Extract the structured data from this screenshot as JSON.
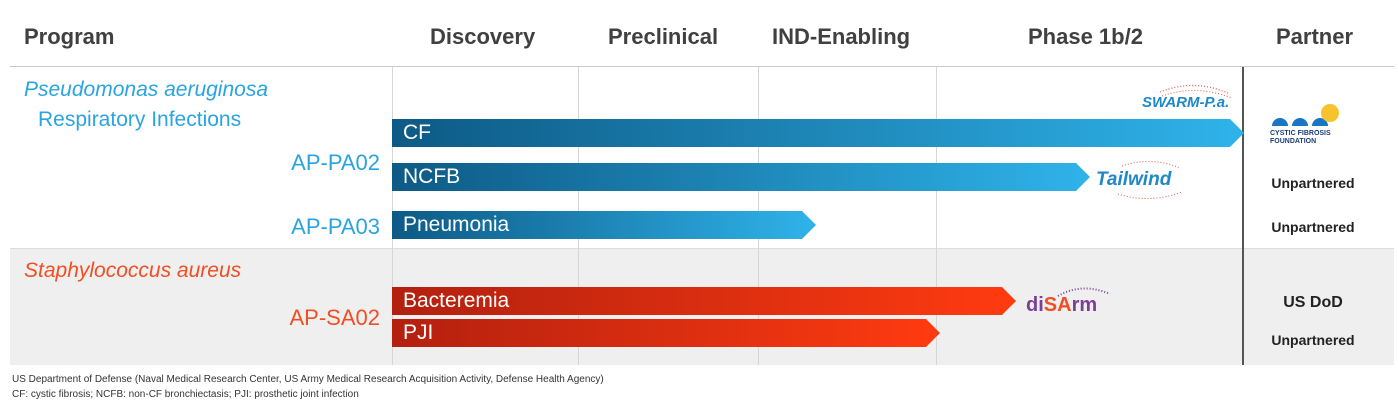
{
  "headers": {
    "program": "Program",
    "discovery": "Discovery",
    "preclinical": "Preclinical",
    "ind_enabling": "IND-Enabling",
    "phase": "Phase 1b/2",
    "partner": "Partner"
  },
  "groups": [
    {
      "title": "Pseudomonas aeruginosa",
      "subtitle": "Respiratory Infections",
      "color": "#2aa4e0",
      "programs": [
        {
          "name": "AP-PA02",
          "indications": [
            {
              "label": "CF",
              "stage": "Phase 1b/2",
              "trial": "SWARM-P.a.",
              "partner": "CYSTIC FIBROSIS FOUNDATION"
            },
            {
              "label": "NCFB",
              "stage": "Phase 1b/2",
              "trial": "Tailwind",
              "partner": "Unpartnered"
            }
          ]
        },
        {
          "name": "AP-PA03",
          "indications": [
            {
              "label": "Pneumonia",
              "stage": "IND-Enabling",
              "partner": "Unpartnered"
            }
          ]
        }
      ]
    },
    {
      "title": "Staphylococcus aureus",
      "color": "#f04e23",
      "programs": [
        {
          "name": "AP-SA02",
          "indications": [
            {
              "label": "Bacteremia",
              "stage": "Phase 1b/2",
              "trial": "diSArm",
              "partner": "US DoD"
            },
            {
              "label": "PJI",
              "stage": "Phase 1b/2",
              "partner": "Unpartnered"
            }
          ]
        }
      ]
    }
  ],
  "logos": {
    "swarm": "SWARM-P.a.",
    "cff_line1": "CYSTIC FIBROSIS",
    "cff_line2": "FOUNDATION",
    "tailwind": "Tailwind",
    "disarm_di": "di",
    "disarm_sa": "SA",
    "disarm_rm": "rm"
  },
  "footnotes": [
    "US Department of Defense (Naval Medical Research Center, US Army Medical Research Acquisition Activity, Defense Health Agency)",
    "CF: cystic fibrosis; NCFB: non-CF bronchiectasis; PJI: prosthetic joint infection"
  ],
  "colors": {
    "blue_dark": "#0d5a85",
    "blue_light": "#2fb3ea",
    "red_dark": "#b3200f",
    "red_light": "#ff3b10",
    "blue_text": "#2aa4e0",
    "red_text": "#f04e23"
  }
}
